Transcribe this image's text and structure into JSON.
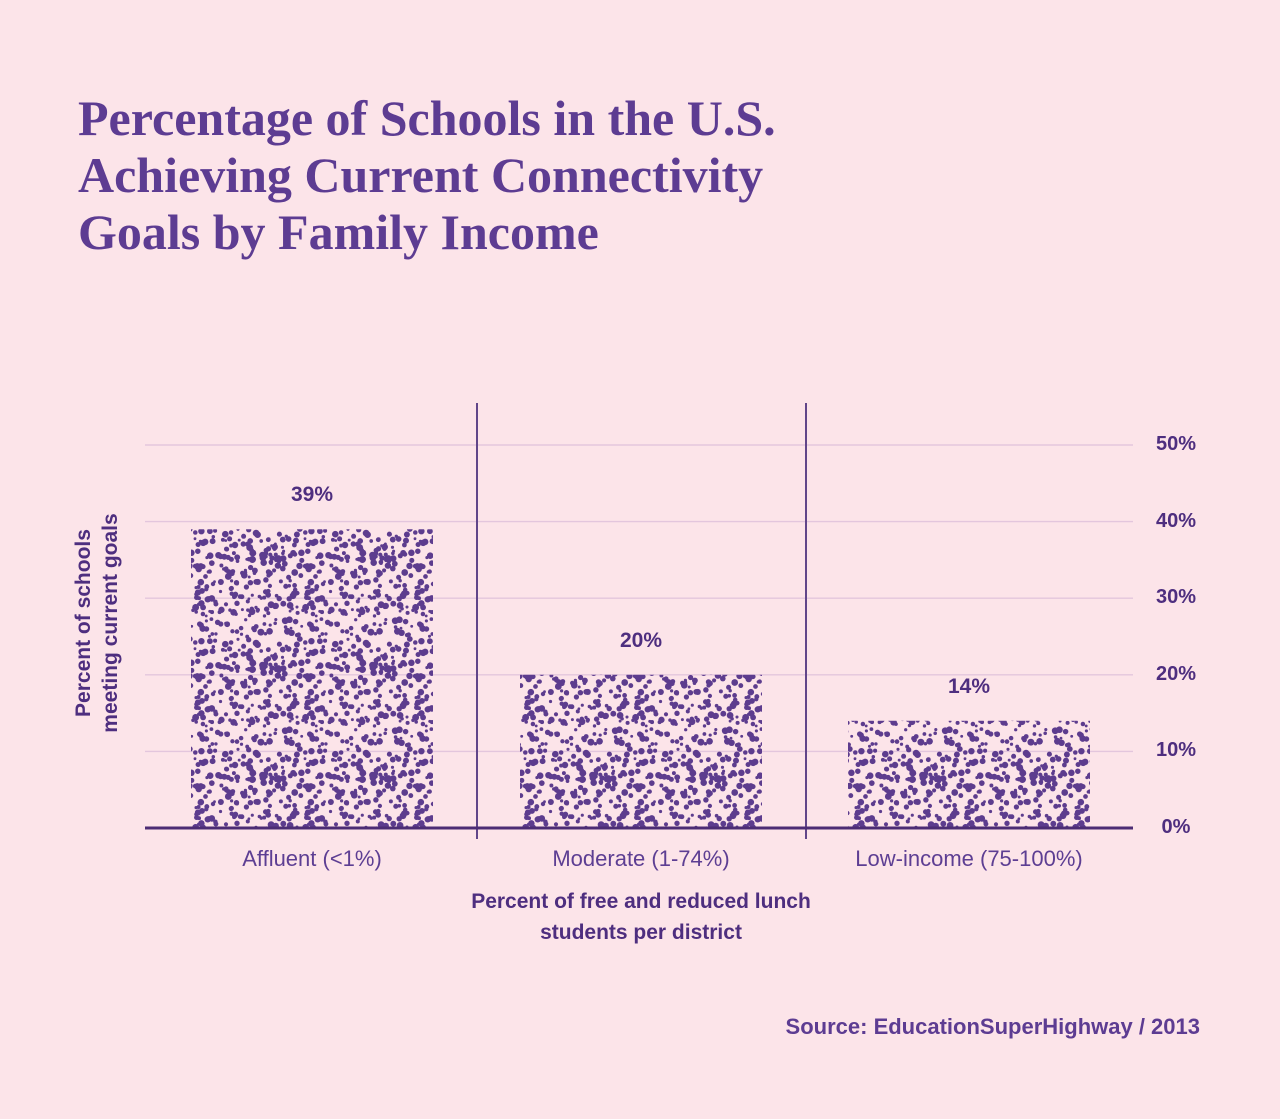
{
  "page": {
    "title_lines": [
      "Percentage of Schools in the U.S.",
      "Achieving Current Connectivity",
      "Goals by Family Income"
    ],
    "source": "Source: EducationSuperHighway / 2013"
  },
  "chart_data": {
    "type": "bar",
    "title": "Percentage of Schools in the U.S. Achieving Current Connectivity Goals by Family Income",
    "categories": [
      "Affluent (<1%)",
      "Moderate (1-74%)",
      "Low-income (75-100%)"
    ],
    "values": [
      39,
      20,
      14
    ],
    "value_labels": [
      "39%",
      "20%",
      "14%"
    ],
    "xlabel": "Percent of free and reduced lunch students per district",
    "xlabel_lines": [
      "Percent of free and reduced lunch",
      "students per district"
    ],
    "ylabel": "Percent of schools meeting current goals",
    "ylabel_lines": [
      "Percent of schools",
      "meeting current goals"
    ],
    "ylim": [
      0,
      50
    ],
    "yticks": [
      0,
      10,
      20,
      30,
      40,
      50
    ],
    "ytick_labels": [
      "0%",
      "10%",
      "20%",
      "30%",
      "40%",
      "50%"
    ],
    "ytick_side": "right",
    "grid": true,
    "legend": "none",
    "bar_texture": "stipple-dots",
    "source": "Source: EducationSuperHighway / 2013",
    "colors": {
      "background": "#fce4e9",
      "title": "#5d3c92",
      "bar_dots": "#5d3c8e",
      "label_text": "#4e2e7f",
      "category_text": "#5d3e93",
      "gridline": "#e3c6dd",
      "axis_line": "#4c2c74",
      "divider": "#614589"
    }
  }
}
